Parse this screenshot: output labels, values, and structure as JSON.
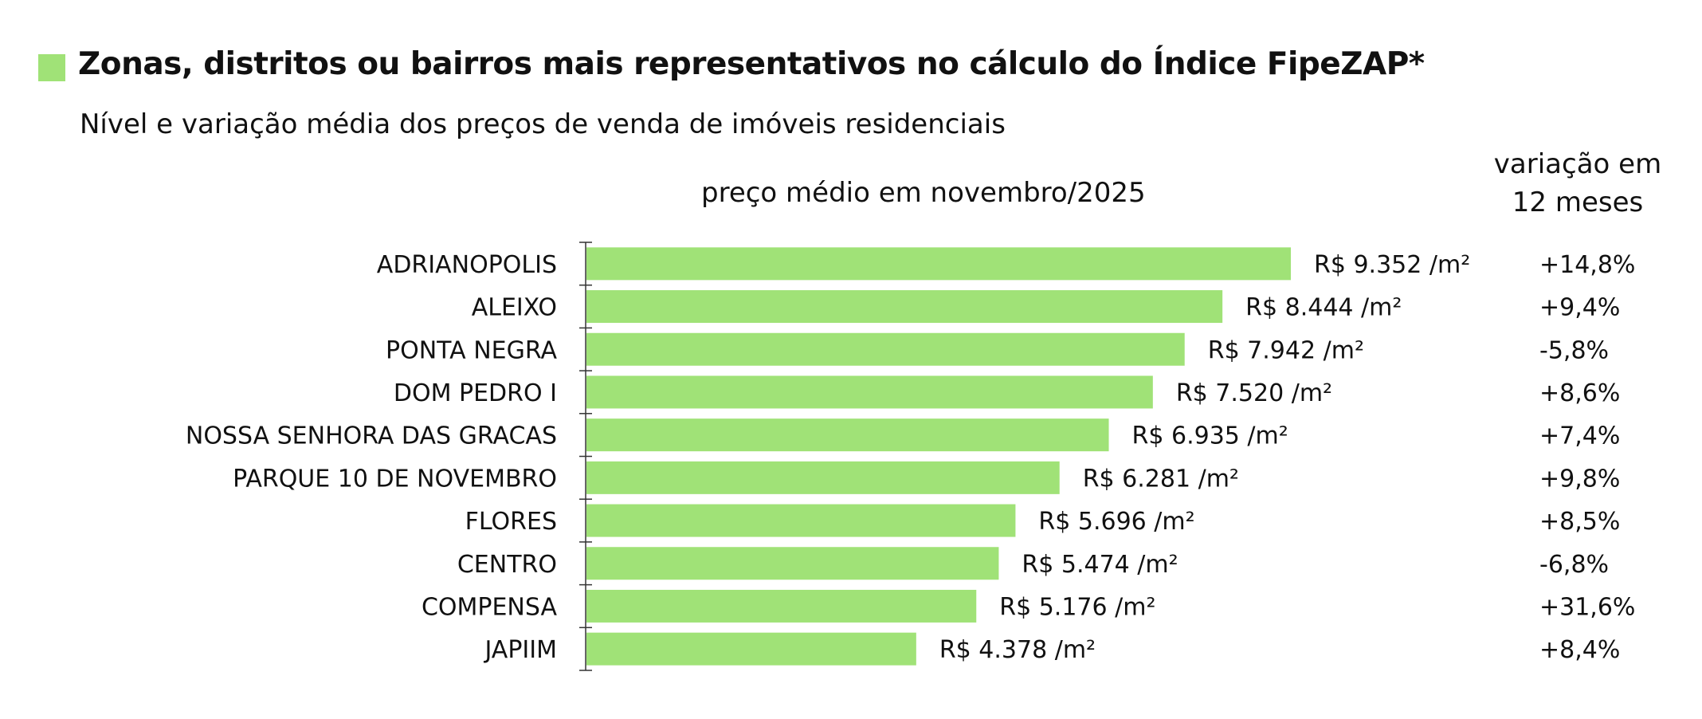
{
  "title": "Zonas, distritos ou bairros mais representativos no cálculo do Índice FipeZAP*",
  "subtitle": "Nível e variação média dos preços de venda de imóveis residenciais",
  "price_header": "preço médio em novembro/2025",
  "variation_header_line1": "variação em",
  "variation_header_line2": "12 meses",
  "colors": {
    "bar": "#a0e277",
    "legend": "#a0e277",
    "text": "#111111"
  },
  "chart_data": {
    "type": "bar",
    "orientation": "horizontal",
    "categories": [
      "ADRIANOPOLIS",
      "ALEIXO",
      "PONTA NEGRA",
      "DOM PEDRO I",
      "NOSSA SENHORA DAS GRACAS",
      "PARQUE 10 DE NOVEMBRO",
      "FLORES",
      "CENTRO",
      "COMPENSA",
      "JAPIIM"
    ],
    "values": [
      9352,
      8444,
      7942,
      7520,
      6935,
      6281,
      5696,
      5474,
      5176,
      4378
    ],
    "value_labels": [
      "R$ 9.352 /m²",
      "R$ 8.444 /m²",
      "R$ 7.942 /m²",
      "R$ 7.520 /m²",
      "R$ 6.935 /m²",
      "R$ 6.281 /m²",
      "R$ 5.696 /m²",
      "R$ 5.474 /m²",
      "R$ 5.176 /m²",
      "R$ 4.378 /m²"
    ],
    "variation_12m": [
      "+14,8%",
      "+9,4%",
      "-5,8%",
      "+8,6%",
      "+7,4%",
      "+9,8%",
      "+8,5%",
      "-6,8%",
      "+31,6%",
      "+8,4%"
    ],
    "title": "Zonas, distritos ou bairros mais representativos no cálculo do Índice FipeZAP*",
    "xlim": [
      0,
      9352
    ],
    "grid": false,
    "legend": "none"
  }
}
